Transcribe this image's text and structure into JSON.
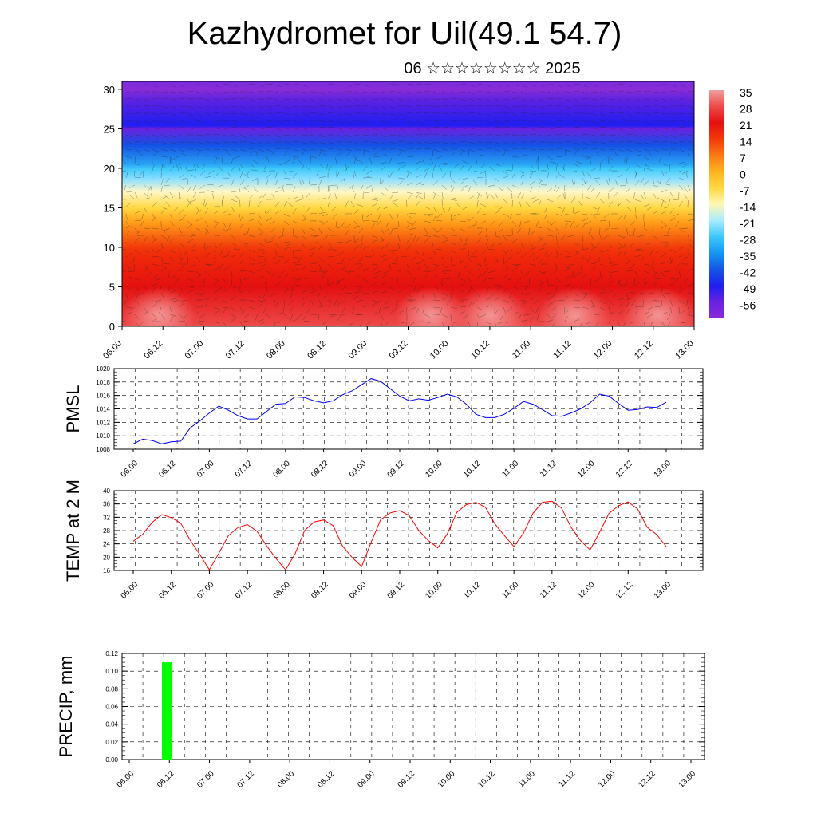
{
  "title": "Kazhydromet for Uil(49.1 54.7)",
  "subtitle": "06 ☆☆☆☆☆☆☆☆ 2025",
  "x_ticks": [
    "06.00",
    "06.12",
    "07.00",
    "07.12",
    "08.00",
    "08.12",
    "09.00",
    "09.12",
    "10.00",
    "10.12",
    "11.00",
    "11.12",
    "12.00",
    "12.12",
    "13.00"
  ],
  "chart_data": [
    {
      "type": "heatmap",
      "ylim": [
        0,
        31
      ],
      "y_ticks": [
        0,
        5,
        10,
        15,
        20,
        25,
        30
      ],
      "colorbar": {
        "labels": [
          "35",
          "28",
          "21",
          "14",
          "7",
          "0",
          "-7",
          "-14",
          "-21",
          "-28",
          "-35",
          "-42",
          "-49",
          "-56"
        ],
        "colors": [
          "#ef9e9e",
          "#ee4a4a",
          "#e41010",
          "#f23a0a",
          "#fa7a14",
          "#ffb41e",
          "#ffd842",
          "#fff7b4",
          "#a8ecff",
          "#3cc8fa",
          "#1496f0",
          "#1455e6",
          "#1e1ef0",
          "#6a22e0",
          "#8a2cd6"
        ]
      },
      "temperature_field": {
        "levels": [
          0,
          5,
          10,
          15,
          20,
          25,
          30
        ],
        "values": [
          33,
          26,
          18,
          -7,
          -25,
          -52,
          -58
        ]
      }
    },
    {
      "type": "line",
      "ylabel": "PMSL",
      "ylim": [
        1008,
        1020
      ],
      "y_ticks": [
        1008,
        1010,
        1012,
        1014,
        1016,
        1018,
        1020
      ],
      "color": "#0000ff",
      "values": [
        1008.8,
        1009.5,
        1009.3,
        1008.8,
        1009.1,
        1009.2,
        1011.2,
        1012.2,
        1013.4,
        1014.4,
        1013.8,
        1013.0,
        1012.5,
        1012.5,
        1013.6,
        1014.7,
        1014.8,
        1015.8,
        1015.7,
        1015.2,
        1014.9,
        1015.2,
        1016.1,
        1016.7,
        1017.6,
        1018.5,
        1018.1,
        1017.0,
        1015.9,
        1015.2,
        1015.5,
        1015.3,
        1015.7,
        1016.2,
        1015.8,
        1014.7,
        1013.2,
        1012.7,
        1012.7,
        1013.2,
        1014.1,
        1015.1,
        1014.7,
        1013.9,
        1013.0,
        1012.9,
        1013.4,
        1014.0,
        1014.9,
        1016.2,
        1015.9,
        1014.8,
        1013.8,
        1013.9,
        1014.3,
        1014.2,
        1015.0
      ]
    },
    {
      "type": "line",
      "ylabel": "TEMP at 2 M",
      "ylim": [
        16,
        40
      ],
      "y_ticks": [
        16,
        20,
        24,
        28,
        32,
        36,
        40
      ],
      "color": "#ff0000",
      "values": [
        24.8,
        26.9,
        30.5,
        32.8,
        31.9,
        30.2,
        25.0,
        20.8,
        16.2,
        21.2,
        26.5,
        28.9,
        29.8,
        27.8,
        23.5,
        19.6,
        16.2,
        21.0,
        28.0,
        30.6,
        31.2,
        29.5,
        23.3,
        19.9,
        17.2,
        24.5,
        31.3,
        33.3,
        34.0,
        32.5,
        28.0,
        25.0,
        22.8,
        27.0,
        33.5,
        35.8,
        36.5,
        35.0,
        30.0,
        26.5,
        23.2,
        27.2,
        33.2,
        36.5,
        36.8,
        34.8,
        29.0,
        25.0,
        22.2,
        27.5,
        33.2,
        35.5,
        36.6,
        34.5,
        29.0,
        26.8,
        23.2
      ]
    },
    {
      "type": "bar",
      "ylabel": "PRECIP, mm",
      "ylim": [
        0,
        0.12
      ],
      "y_ticks": [
        "0.00",
        "0.02",
        "0.04",
        "0.06",
        "0.08",
        "0.10",
        "0.12"
      ],
      "color": "#00ff00",
      "x": [
        "06.09"
      ],
      "values": [
        0.11
      ]
    }
  ]
}
